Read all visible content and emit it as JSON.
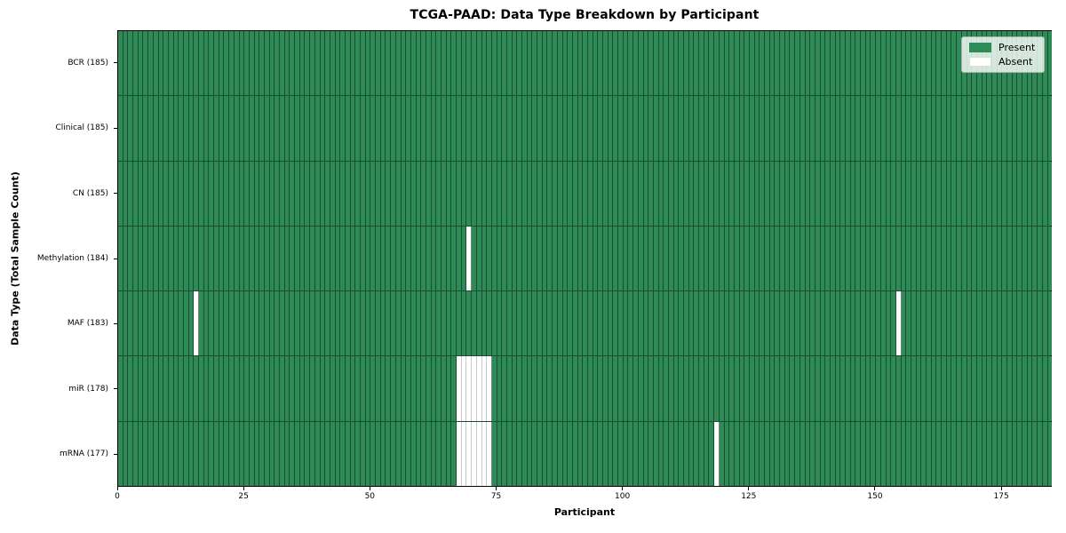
{
  "title": "TCGA-PAAD: Data Type Breakdown by Participant",
  "x_axis_label": "Participant",
  "y_axis_label": "Data Type (Total Sample Count)",
  "legend": {
    "present_label": "Present",
    "absent_label": "Absent"
  },
  "colors": {
    "present": "#2e8b57",
    "absent": "#ffffff",
    "cell_edge_dark": "rgba(10,30,18,0.55)",
    "cell_edge_light": "#c9c9c9",
    "spine": "#000000",
    "legend_background": "rgba(255,255,255,0.8)"
  },
  "chart_data": {
    "type": "heatmap",
    "title": "TCGA-PAAD: Data Type Breakdown by Participant",
    "xlabel": "Participant",
    "ylabel": "Data Type (Total Sample Count)",
    "n_participants": 185,
    "x_range": [
      0,
      185
    ],
    "x_ticks": [
      0,
      25,
      50,
      75,
      100,
      125,
      150,
      175
    ],
    "legend_entries": [
      "Present",
      "Absent"
    ],
    "legend_position": "upper right",
    "grid": "cell borders only",
    "rows": [
      {
        "data_type": "BCR",
        "label": "BCR (185)",
        "total_samples": 185,
        "absent_participants": []
      },
      {
        "data_type": "Clinical",
        "label": "Clinical (185)",
        "total_samples": 185,
        "absent_participants": []
      },
      {
        "data_type": "CN",
        "label": "CN (185)",
        "total_samples": 185,
        "absent_participants": []
      },
      {
        "data_type": "Methylation",
        "label": "Methylation (184)",
        "total_samples": 184,
        "absent_participants": [
          69
        ]
      },
      {
        "data_type": "MAF",
        "label": "MAF (183)",
        "total_samples": 183,
        "absent_participants": [
          15,
          154
        ]
      },
      {
        "data_type": "miR",
        "label": "miR (178)",
        "total_samples": 178,
        "absent_participants": [
          67,
          68,
          69,
          70,
          71,
          72,
          73
        ]
      },
      {
        "data_type": "mRNA",
        "label": "mRNA (177)",
        "total_samples": 177,
        "absent_participants": [
          67,
          68,
          69,
          70,
          71,
          72,
          73,
          118
        ]
      }
    ]
  }
}
